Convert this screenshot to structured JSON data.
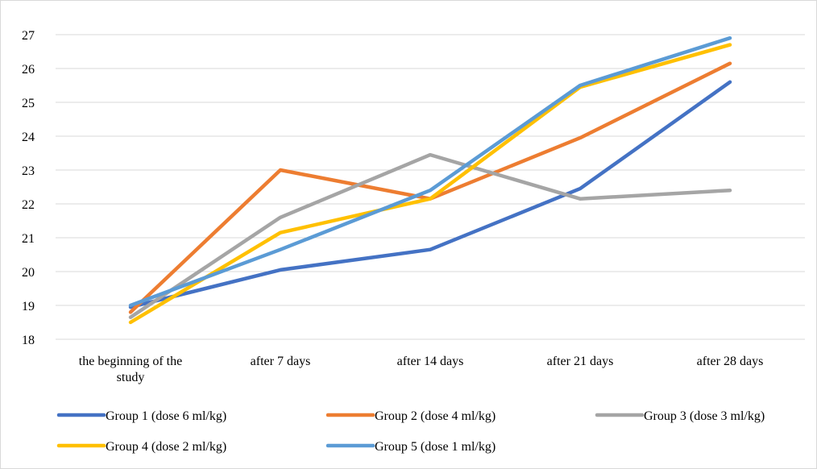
{
  "chart_data": {
    "type": "line",
    "title": "",
    "xlabel": "",
    "ylabel": "",
    "categories": [
      "the beginning of the study",
      "after 7 days",
      "after 14 days",
      "after 21 days",
      "after 28 days"
    ],
    "category_lines": [
      [
        "the beginning of the",
        "study"
      ],
      [
        "after 7 days"
      ],
      [
        "after 14 days"
      ],
      [
        "after 21 days"
      ],
      [
        "after 28 days"
      ]
    ],
    "ylim": [
      18,
      27
    ],
    "yticks": [
      18,
      19,
      20,
      21,
      22,
      23,
      24,
      25,
      26,
      27
    ],
    "grid": "horizontal",
    "legend_position": "bottom",
    "series": [
      {
        "name": "Group 1 (dose 6 ml/kg)",
        "color": "#4472C4",
        "values": [
          18.95,
          20.05,
          20.65,
          22.45,
          25.6
        ]
      },
      {
        "name": "Group 2 (dose 4 ml/kg)",
        "color": "#ED7D31",
        "values": [
          18.8,
          23.0,
          22.15,
          23.95,
          26.15
        ]
      },
      {
        "name": "Group 3 (dose 3 ml/kg)",
        "color": "#A5A5A5",
        "values": [
          18.65,
          21.6,
          23.45,
          22.15,
          22.4
        ]
      },
      {
        "name": "Group 4 (dose 2 ml/kg)",
        "color": "#FFC000",
        "values": [
          18.5,
          21.15,
          22.15,
          25.45,
          26.7
        ]
      },
      {
        "name": "Group 5 (dose 1 ml/kg)",
        "color": "#5B9BD5",
        "values": [
          19.0,
          20.65,
          22.4,
          25.5,
          26.9
        ]
      }
    ]
  }
}
